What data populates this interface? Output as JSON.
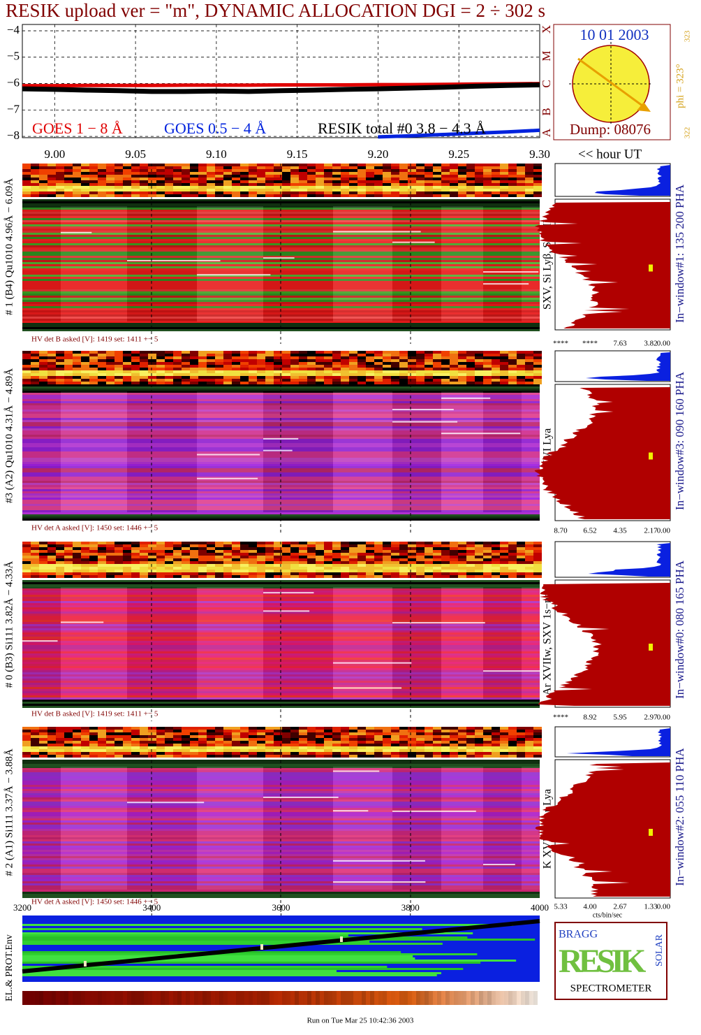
{
  "title": "RESIK upload ver = \"m\", DYNAMIC ALLOCATION  DGI =   2 ÷ 302 s",
  "chart_data": {
    "type": "line",
    "x": [
      8.98,
      9.0,
      9.02,
      9.04,
      9.06,
      9.08,
      9.1,
      9.12,
      9.14,
      9.16,
      9.18,
      9.2,
      9.22,
      9.24,
      9.26,
      9.28,
      9.3
    ],
    "series": [
      {
        "name": "GOES 1 − 8 Å",
        "color": "#e00000",
        "values": [
          -6.08,
          -6.08,
          -6.07,
          -6.07,
          -6.07,
          -6.06,
          -6.06,
          -6.06,
          -6.05,
          -6.05,
          -6.05,
          -6.04,
          -6.04,
          -6.03,
          -6.02,
          -6.01,
          -6.0
        ]
      },
      {
        "name": "GOES 0.5 − 4 Å",
        "color": "#0022dd",
        "values": [
          null,
          null,
          null,
          null,
          null,
          null,
          null,
          null,
          null,
          null,
          null,
          -8.02,
          -7.98,
          -7.93,
          -7.88,
          -7.83,
          -7.77
        ]
      },
      {
        "name": "RESIK total #0  3.8 − 4.3 Å",
        "color": "#000000",
        "values": [
          -6.2,
          -6.22,
          -6.25,
          -6.27,
          -6.3,
          -6.3,
          -6.28,
          -6.3,
          -6.27,
          -6.25,
          -6.22,
          -6.2,
          -6.17,
          -6.14,
          -6.1,
          -6.07,
          -6.05
        ]
      }
    ],
    "xlim": [
      8.98,
      9.3
    ],
    "xticks": [
      {
        "value": 9.0,
        "label": "9.00"
      },
      {
        "value": 9.05,
        "label": "9.05"
      },
      {
        "value": 9.1,
        "label": "9.10"
      },
      {
        "value": 9.15,
        "label": "9.15"
      },
      {
        "value": 9.2,
        "label": "9.20"
      },
      {
        "value": 9.25,
        "label": "9.25"
      },
      {
        "value": 9.3,
        "label": "9.30"
      }
    ],
    "ylim": [
      -8.05,
      -3.76
    ],
    "yticks": [
      {
        "value": -4,
        "label": "−4"
      },
      {
        "value": -5,
        "label": "−5"
      },
      {
        "value": -6,
        "label": "−6"
      },
      {
        "value": -7,
        "label": "−7"
      },
      {
        "value": -8,
        "label": "−8"
      }
    ],
    "x_label": "<< hour UT",
    "grid": true
  },
  "sun": {
    "date": "10 01 2003",
    "dump": "Dump: 08076",
    "phi": "phi = 323°",
    "phi_top": "323",
    "phi_bottom": "322",
    "classes": [
      "A",
      "B",
      "C",
      "M",
      "X"
    ]
  },
  "panels": [
    {
      "label": "# 1 (B4) Qu1010 4.96Å − 6.09Å",
      "lines": "SXV, Si Lyβ, SiXIII",
      "window": "In−window#1:  135 200 PHA",
      "hv": "HV det B asked [V]:  1419 set:  1411  +−    5",
      "ticks": [
        "****",
        "****",
        "7.63",
        "3.82",
        "0.00"
      ]
    },
    {
      "label": "#3 (A2) Qu1010  4.31Å − 4.89Å",
      "lines": "S XVI Lya",
      "window": "In−window#3:  090 160 PHA",
      "hv": "HV det A asked [V]:  1450 set:  1446  +−    5",
      "ticks": [
        "8.70",
        "6.52",
        "4.35",
        "2.17",
        "0.00"
      ]
    },
    {
      "label": "# 0 (B3) Si111  3.82Å − 4.33Å",
      "lines": "Ar XVIIw,  SXV 1s−np",
      "window": "In−window#0:  080 165 PHA",
      "hv": "HV det B asked [V]:  1419 set:  1411  +−    5",
      "ticks": [
        "****",
        "8.92",
        "5.95",
        "2.97",
        "0.00"
      ]
    },
    {
      "label": "# 2 (A1) Si111  3.37Å − 3.88Å",
      "lines": "K XVIIIw  Ar Lya",
      "window": "In−window#2:  055 110 PHA",
      "hv": "HV det A asked [V]:  1450 set:  1446  +−    5",
      "ticks": [
        "5.33",
        "4.00",
        "2.67",
        "1.33",
        "0.00"
      ]
    }
  ],
  "pha_unit": "cts/bin/sec",
  "bottom": {
    "xlim": [
      3200,
      4000
    ],
    "xticks": [
      3200,
      3400,
      3600,
      3800,
      4000
    ],
    "y_label": "EL.& PROT.Env"
  },
  "logo": {
    "bragg": "BRAGG",
    "resik": "RESIK",
    "solar": "SOLAR",
    "spectrometer": "SPECTROMETER"
  },
  "footer": "Run on Tue Mar 25 10:42:36 2003"
}
